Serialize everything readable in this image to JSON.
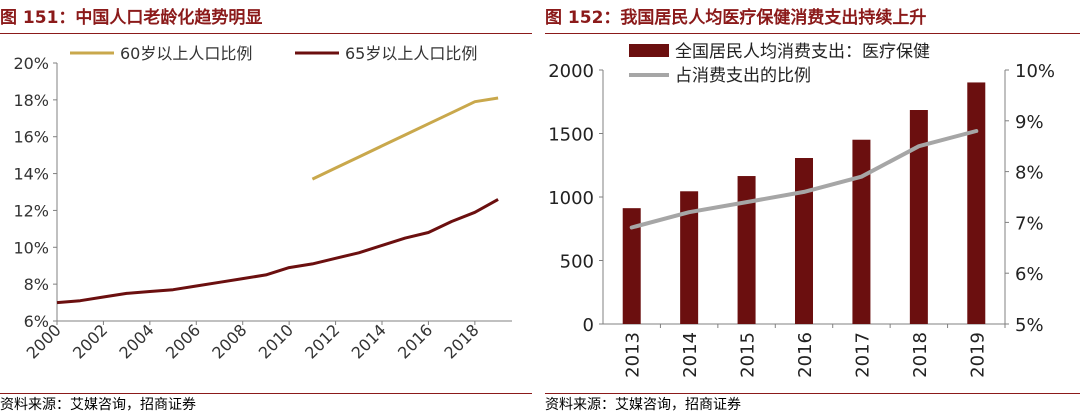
{
  "charts": [
    {
      "title": "图 151：中国人口老龄化趋势明显",
      "source": "资料来源：艾媒咨询，招商证券"
    },
    {
      "title": "图 152：我国居民人均医疗保健消费支出持续上升",
      "source": "资料来源：艾媒咨询，招商证券"
    }
  ],
  "chart_data": [
    {
      "type": "line",
      "title": "图 151：中国人口老龄化趋势明显",
      "x": [
        2000,
        2001,
        2002,
        2003,
        2004,
        2005,
        2006,
        2007,
        2008,
        2009,
        2010,
        2011,
        2012,
        2013,
        2014,
        2015,
        2016,
        2017,
        2018,
        2019
      ],
      "series": [
        {
          "name": "60岁以上人口比例",
          "color": "#C9A84C",
          "values": [
            null,
            null,
            null,
            null,
            null,
            null,
            null,
            null,
            null,
            null,
            null,
            13.7,
            14.3,
            14.9,
            15.5,
            16.1,
            16.7,
            17.3,
            17.9,
            18.1
          ]
        },
        {
          "name": "65岁以上人口比例",
          "color": "#6B0F0F",
          "values": [
            7.0,
            7.1,
            7.3,
            7.5,
            7.6,
            7.7,
            7.9,
            8.1,
            8.3,
            8.5,
            8.9,
            9.1,
            9.4,
            9.7,
            10.1,
            10.5,
            10.8,
            11.4,
            11.9,
            12.6
          ]
        }
      ],
      "xticks": [
        "2000",
        "2002",
        "2004",
        "2006",
        "2008",
        "2010",
        "2012",
        "2014",
        "2016",
        "2018"
      ],
      "ylim": [
        6,
        20
      ],
      "yticks": [
        "6%",
        "8%",
        "10%",
        "12%",
        "14%",
        "16%",
        "18%",
        "20%"
      ],
      "legend": "top",
      "grid": false
    },
    {
      "type": "bar",
      "title": "图 152：我国居民人均医疗保健消费支出持续上升",
      "categories": [
        "2013",
        "2014",
        "2015",
        "2016",
        "2017",
        "2018",
        "2019"
      ],
      "series": [
        {
          "name": "全国居民人均消费支出：医疗保健",
          "type": "bar",
          "axis": "left",
          "color": "#6B0F0F",
          "values": [
            912,
            1045,
            1165,
            1307,
            1451,
            1685,
            1902
          ]
        },
        {
          "name": "占消费支出的比例",
          "type": "line",
          "axis": "right",
          "color": "#A6A6A6",
          "values": [
            6.9,
            7.2,
            7.4,
            7.6,
            7.9,
            8.5,
            8.8
          ]
        }
      ],
      "ylim_left": [
        0,
        2000
      ],
      "yticks_left": [
        "0",
        "500",
        "1000",
        "1500",
        "2000"
      ],
      "ylim_right": [
        5,
        10
      ],
      "yticks_right": [
        "5%",
        "6%",
        "7%",
        "8%",
        "9%",
        "10%"
      ],
      "legend": "top-left",
      "grid": false
    }
  ]
}
